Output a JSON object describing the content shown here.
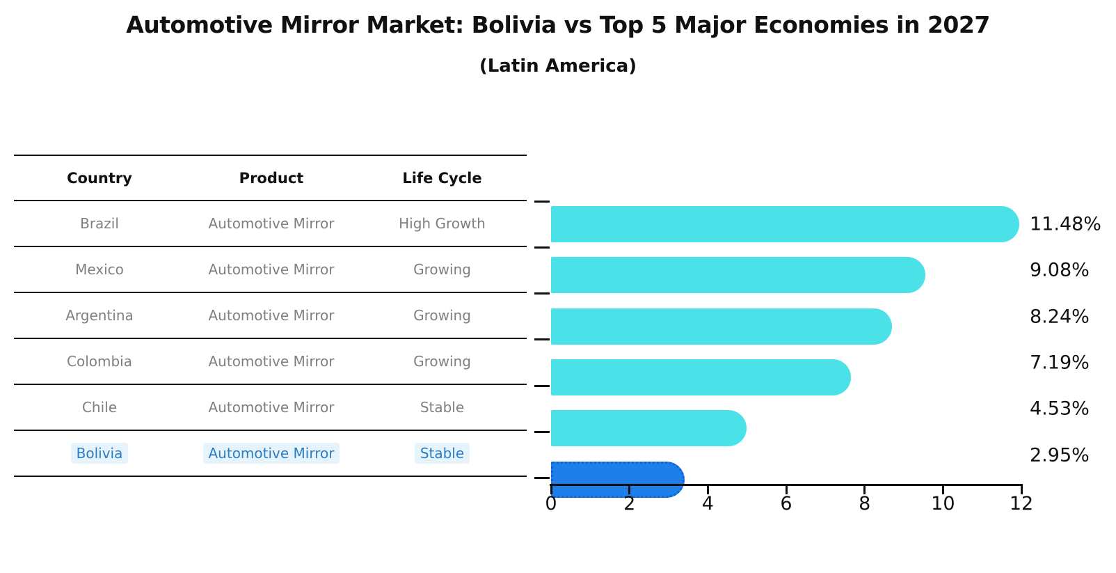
{
  "title": "Automotive Mirror Market: Bolivia vs Top 5 Major Economies in 2027",
  "subtitle": "(Latin America)",
  "table": {
    "headers": [
      "Country",
      "Product",
      "Life Cycle"
    ],
    "rows": [
      {
        "country": "Brazil",
        "product": "Automotive Mirror",
        "life_cycle": "High Growth",
        "highlight": false
      },
      {
        "country": "Mexico",
        "product": "Automotive Mirror",
        "life_cycle": "Growing",
        "highlight": false
      },
      {
        "country": "Argentina",
        "product": "Automotive Mirror",
        "life_cycle": "Growing",
        "highlight": false
      },
      {
        "country": "Colombia",
        "product": "Automotive Mirror",
        "life_cycle": "Growing",
        "highlight": false
      },
      {
        "country": "Chile",
        "product": "Automotive Mirror",
        "life_cycle": "Stable",
        "highlight": false
      },
      {
        "country": "Bolivia",
        "product": "Automotive Mirror",
        "life_cycle": "Stable",
        "highlight": true
      }
    ]
  },
  "chart_data": {
    "type": "bar",
    "orientation": "horizontal",
    "title": "Automotive Mirror Market: Bolivia vs Top 5 Major Economies in 2027 (Latin America)",
    "categories": [
      "Brazil",
      "Mexico",
      "Argentina",
      "Colombia",
      "Chile",
      "Bolivia"
    ],
    "values": [
      11.48,
      9.08,
      8.24,
      7.19,
      4.53,
      2.95
    ],
    "value_labels": [
      "11.48%",
      "9.08%",
      "8.24%",
      "7.19%",
      "4.53%",
      "2.95%"
    ],
    "x_ticks": [
      "0",
      "2",
      "4",
      "6",
      "8",
      "10",
      "12"
    ],
    "xlim": [
      0,
      12
    ],
    "xlabel": "",
    "ylabel": "",
    "grid": false,
    "legend": false,
    "bar_color": "#4ae2e8",
    "highlight_color": "#1f7fe8",
    "highlight_border_color": "#135fd6",
    "highlight_index": 5
  },
  "colors": {
    "text_gray": "#7f7f7f",
    "highlight_text": "#2a7ec4",
    "axis": "#111111"
  }
}
